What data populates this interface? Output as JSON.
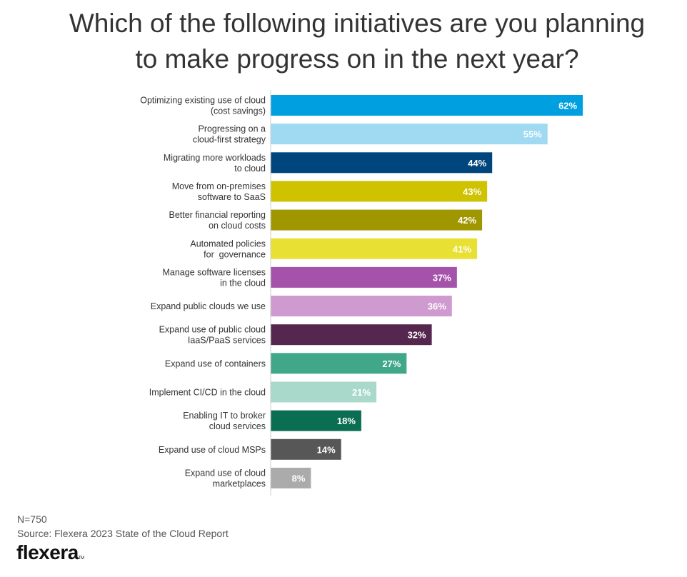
{
  "title": {
    "line1": "Which of the following initiatives are you planning",
    "line2": "to make progress on in the next year?"
  },
  "chart_data": {
    "type": "bar",
    "orientation": "horizontal",
    "title": "Which of the following initiatives are you planning to make progress on in the next year?",
    "categories": [
      [
        "Optimizing existing use of cloud",
        "(cost savings)"
      ],
      [
        "Progressing on a",
        "cloud-first strategy"
      ],
      [
        "Migrating more workloads",
        "to cloud"
      ],
      [
        "Move from on-premises",
        "software to SaaS"
      ],
      [
        "Better financial reporting",
        "on cloud costs"
      ],
      [
        "Automated policies",
        "for  governance"
      ],
      [
        "Manage software licenses",
        "in the cloud"
      ],
      [
        "Expand public clouds we use"
      ],
      [
        "Expand use of public cloud",
        "IaaS/PaaS services"
      ],
      [
        "Expand use of containers"
      ],
      [
        "Implement CI/CD in the cloud"
      ],
      [
        "Enabling IT to broker",
        "cloud services"
      ],
      [
        "Expand use of cloud MSPs"
      ],
      [
        "Expand use of cloud",
        "marketplaces"
      ]
    ],
    "values": [
      62,
      55,
      44,
      43,
      42,
      41,
      37,
      36,
      32,
      27,
      21,
      18,
      14,
      8
    ],
    "value_labels": [
      "62%",
      "55%",
      "44%",
      "43%",
      "42%",
      "41%",
      "37%",
      "36%",
      "32%",
      "27%",
      "21%",
      "18%",
      "14%",
      "8%"
    ],
    "colors": [
      "#00a0e0",
      "#9fdaf2",
      "#00457c",
      "#cfc200",
      "#a09600",
      "#e8e133",
      "#a552ab",
      "#cf9acf",
      "#55274f",
      "#40a789",
      "#a8d9ca",
      "#0a6e52",
      "#575757",
      "#ababab"
    ],
    "xlim": [
      0,
      100
    ],
    "grid": false,
    "legend": "none"
  },
  "footer": {
    "n": "N=750",
    "source": "Source: Flexera 2023 State of the Cloud Report"
  },
  "logo": {
    "text": "flexera",
    "tm": "TM"
  }
}
